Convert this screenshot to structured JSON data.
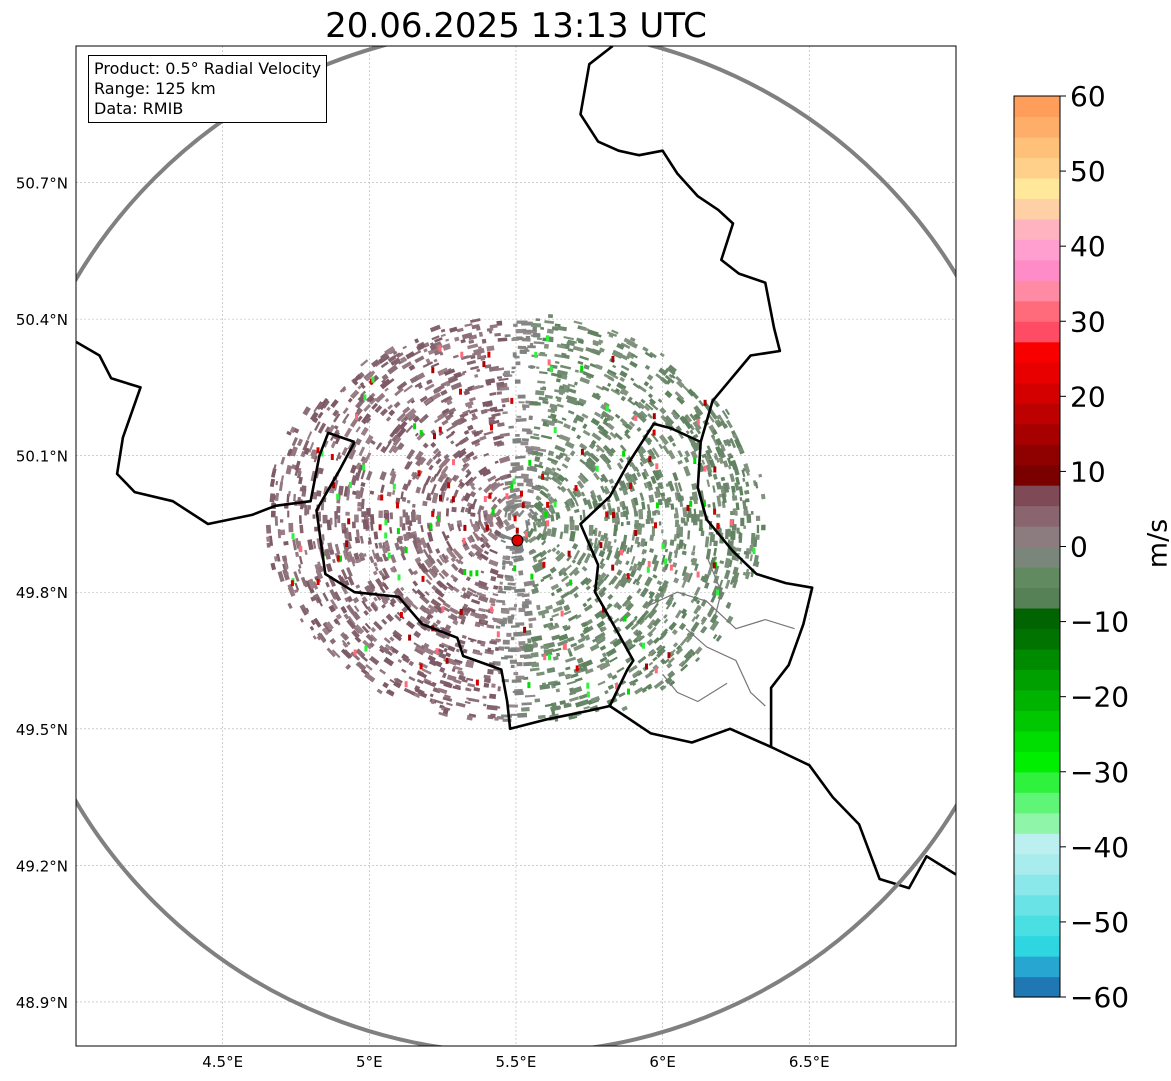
{
  "title": "20.06.2025 13:13 UTC",
  "info": {
    "product": "Product: 0.5° Radial Velocity",
    "range": "Range: 125 km",
    "source": "Data: RMIB"
  },
  "radar_site": {
    "lon": 5.505,
    "lat": 49.914,
    "range_km": 125
  },
  "map_extent": {
    "lon": [
      4.0,
      7.0
    ],
    "lat": [
      48.8,
      51.0
    ]
  },
  "lat_ticks": [
    {
      "value": 50.7,
      "label": "50.7°N"
    },
    {
      "value": 50.4,
      "label": "50.4°N"
    },
    {
      "value": 50.1,
      "label": "50.1°N"
    },
    {
      "value": 49.8,
      "label": "49.8°N"
    },
    {
      "value": 49.5,
      "label": "49.5°N"
    },
    {
      "value": 49.2,
      "label": "49.2°N"
    },
    {
      "value": 48.9,
      "label": "48.9°N"
    }
  ],
  "lon_ticks": [
    {
      "value": 4.5,
      "label": "4.5°E"
    },
    {
      "value": 5.0,
      "label": "5°E"
    },
    {
      "value": 5.5,
      "label": "5.5°E"
    },
    {
      "value": 6.0,
      "label": "6°E"
    },
    {
      "value": 6.5,
      "label": "6.5°E"
    }
  ],
  "colorbar": {
    "unit": "m/s",
    "min": -60,
    "max": 60,
    "ticks": [
      {
        "value": 60,
        "label": "60"
      },
      {
        "value": 50,
        "label": "50"
      },
      {
        "value": 40,
        "label": "40"
      },
      {
        "value": 30,
        "label": "30"
      },
      {
        "value": 20,
        "label": "20"
      },
      {
        "value": 10,
        "label": "10"
      },
      {
        "value": 0,
        "label": "0"
      },
      {
        "value": -10,
        "label": "−10"
      },
      {
        "value": -20,
        "label": "−20"
      },
      {
        "value": -30,
        "label": "−30"
      },
      {
        "value": -40,
        "label": "−40"
      },
      {
        "value": -50,
        "label": "−50"
      },
      {
        "value": -60,
        "label": "−60"
      }
    ],
    "colors": [
      "#1f78b4",
      "#26a6d1",
      "#2dd6e0",
      "#49dfe3",
      "#69e3e6",
      "#8be8ea",
      "#a8eced",
      "#bbeff0",
      "#8ff5a8",
      "#5ff577",
      "#2ff23e",
      "#00ee00",
      "#00dd00",
      "#00c800",
      "#00b300",
      "#00a000",
      "#008a00",
      "#007300",
      "#006400",
      "#568056",
      "#618a61",
      "#7a867a",
      "#8c7c7f",
      "#8a6570",
      "#7f4a55",
      "#7a0000",
      "#8f0000",
      "#a60000",
      "#bd0000",
      "#d40000",
      "#e80000",
      "#f80000",
      "#ff4c64",
      "#ff6b7a",
      "#ff8aa3",
      "#ff8cc6",
      "#ff9fcf",
      "#ffb2bf",
      "#ffd0a6",
      "#ffe89a",
      "#ffd08a",
      "#ffc07a",
      "#ffae6a",
      "#ff9e5a"
    ]
  },
  "regions": {
    "belgium_west": [
      [
        4.0,
        50.35
      ],
      [
        4.08,
        50.32
      ],
      [
        4.12,
        50.27
      ],
      [
        4.22,
        50.25
      ],
      [
        4.16,
        50.14
      ],
      [
        4.14,
        50.06
      ],
      [
        4.2,
        50.02
      ],
      [
        4.33,
        50.0
      ],
      [
        4.45,
        49.95
      ],
      [
        4.6,
        49.97
      ],
      [
        4.68,
        49.99
      ],
      [
        4.8,
        50.0
      ],
      [
        4.83,
        50.1
      ],
      [
        4.86,
        50.15
      ],
      [
        4.95,
        50.13
      ]
    ],
    "belgium_france": [
      [
        4.95,
        50.13
      ],
      [
        4.9,
        50.07
      ],
      [
        4.82,
        49.98
      ],
      [
        4.85,
        49.84
      ],
      [
        4.95,
        49.8
      ],
      [
        5.1,
        49.79
      ],
      [
        5.18,
        49.73
      ],
      [
        5.3,
        49.7
      ],
      [
        5.32,
        49.66
      ],
      [
        5.45,
        49.63
      ],
      [
        5.47,
        49.56
      ],
      [
        5.48,
        49.5
      ],
      [
        5.6,
        49.52
      ],
      [
        5.75,
        49.54
      ],
      [
        5.82,
        49.55
      ]
    ],
    "belgium_lux": [
      [
        5.82,
        49.55
      ],
      [
        5.88,
        49.63
      ],
      [
        5.9,
        49.65
      ],
      [
        5.84,
        49.72
      ],
      [
        5.77,
        49.8
      ],
      [
        5.78,
        49.86
      ],
      [
        5.72,
        49.95
      ],
      [
        5.82,
        50.01
      ],
      [
        5.88,
        50.08
      ],
      [
        5.97,
        50.17
      ],
      [
        6.03,
        50.16
      ],
      [
        6.13,
        50.13
      ]
    ],
    "belgium_germany": [
      [
        6.13,
        50.13
      ],
      [
        6.17,
        50.22
      ],
      [
        6.3,
        50.32
      ],
      [
        6.4,
        50.33
      ],
      [
        6.38,
        50.38
      ],
      [
        6.35,
        50.48
      ],
      [
        6.26,
        50.5
      ],
      [
        6.2,
        50.53
      ],
      [
        6.24,
        50.61
      ],
      [
        6.19,
        50.64
      ],
      [
        6.12,
        50.67
      ],
      [
        6.05,
        50.72
      ],
      [
        6.0,
        50.77
      ],
      [
        5.92,
        50.76
      ],
      [
        5.85,
        50.77
      ],
      [
        5.78,
        50.79
      ],
      [
        5.72,
        50.85
      ],
      [
        5.75,
        50.96
      ],
      [
        5.83,
        51.0
      ]
    ],
    "lux_east": [
      [
        6.13,
        50.13
      ],
      [
        6.12,
        50.03
      ],
      [
        6.15,
        49.96
      ],
      [
        6.24,
        49.89
      ],
      [
        6.32,
        49.84
      ],
      [
        6.42,
        49.82
      ],
      [
        6.51,
        49.81
      ],
      [
        6.48,
        49.73
      ],
      [
        6.43,
        49.64
      ],
      [
        6.37,
        49.59
      ],
      [
        6.37,
        49.46
      ]
    ],
    "lux_france": [
      [
        5.82,
        49.55
      ],
      [
        5.96,
        49.49
      ],
      [
        6.1,
        49.47
      ],
      [
        6.23,
        49.5
      ],
      [
        6.37,
        49.46
      ]
    ],
    "france_germany": [
      [
        6.37,
        49.46
      ],
      [
        6.5,
        49.42
      ],
      [
        6.58,
        49.35
      ],
      [
        6.67,
        49.29
      ],
      [
        6.74,
        49.17
      ],
      [
        6.84,
        49.15
      ],
      [
        6.9,
        49.22
      ],
      [
        7.0,
        49.18
      ]
    ],
    "lux_cantons": [
      [
        [
          5.95,
          49.77
        ],
        [
          6.05,
          49.8
        ],
        [
          6.15,
          49.78
        ],
        [
          6.25,
          49.72
        ],
        [
          6.35,
          49.74
        ],
        [
          6.45,
          49.72
        ]
      ],
      [
        [
          6.08,
          49.72
        ],
        [
          6.15,
          49.68
        ],
        [
          6.25,
          49.65
        ],
        [
          6.3,
          49.58
        ],
        [
          6.35,
          49.55
        ]
      ],
      [
        [
          6.0,
          49.62
        ],
        [
          6.05,
          49.58
        ],
        [
          6.12,
          49.56
        ],
        [
          6.22,
          49.6
        ]
      ],
      [
        [
          6.15,
          49.88
        ],
        [
          6.2,
          49.8
        ],
        [
          6.18,
          49.75
        ]
      ]
    ]
  }
}
